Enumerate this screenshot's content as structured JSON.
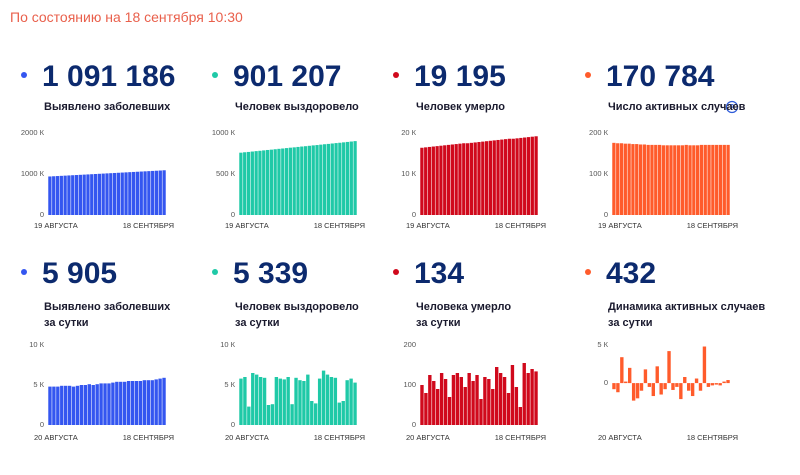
{
  "timestamp": "По состоянию на 18 сентября 10:30",
  "chart_data": [
    {
      "type": "bar",
      "headline": "1 091 186",
      "label_lines": [
        "Выявлено заболевших"
      ],
      "color": "#3456f0",
      "categories": [
        "19 АВГУСТА",
        null,
        null,
        null,
        null,
        null,
        null,
        null,
        null,
        null,
        null,
        null,
        null,
        null,
        null,
        null,
        null,
        null,
        null,
        null,
        null,
        null,
        null,
        null,
        null,
        null,
        null,
        null,
        null,
        null,
        "18 СЕНТЯБРЯ"
      ],
      "values": [
        940,
        945,
        950,
        955,
        960,
        965,
        970,
        975,
        980,
        985,
        990,
        995,
        1000,
        1005,
        1010,
        1015,
        1020,
        1025,
        1030,
        1035,
        1040,
        1045,
        1050,
        1055,
        1060,
        1065,
        1070,
        1075,
        1080,
        1085,
        1091
      ],
      "ylim": [
        0,
        2000
      ],
      "yticks": [
        0,
        {
          "value": 1000,
          "label": "1000 К"
        },
        {
          "value": 2000,
          "label": "2000 К"
        }
      ]
    },
    {
      "type": "bar",
      "headline": "901 207",
      "label_lines": [
        "Человек выздоровело"
      ],
      "color": "#1fc9a7",
      "categories": [
        "19 АВГУСТА",
        null,
        null,
        null,
        null,
        null,
        null,
        null,
        null,
        null,
        null,
        null,
        null,
        null,
        null,
        null,
        null,
        null,
        null,
        null,
        null,
        null,
        null,
        null,
        null,
        null,
        null,
        null,
        null,
        null,
        "18 СЕНТЯБРЯ"
      ],
      "values": [
        760,
        765,
        769,
        774,
        779,
        783,
        788,
        793,
        797,
        802,
        807,
        811,
        816,
        821,
        825,
        830,
        835,
        839,
        844,
        849,
        853,
        858,
        863,
        867,
        872,
        877,
        881,
        886,
        891,
        896,
        901
      ],
      "ylim": [
        0,
        1000
      ],
      "yticks": [
        0,
        {
          "value": 500,
          "label": "500 К"
        },
        {
          "value": 1000,
          "label": "1000 К"
        }
      ]
    },
    {
      "type": "bar",
      "headline": "19 195",
      "label_lines": [
        "Человек умерло"
      ],
      "color": "#d0091c",
      "categories": [
        "19 АВГУСТА",
        null,
        null,
        null,
        null,
        null,
        null,
        null,
        null,
        null,
        null,
        null,
        null,
        null,
        null,
        null,
        null,
        null,
        null,
        null,
        null,
        null,
        null,
        null,
        null,
        null,
        null,
        null,
        null,
        null,
        "18 СЕНТЯБРЯ"
      ],
      "values": [
        16.4,
        16.5,
        16.6,
        16.7,
        16.8,
        16.9,
        17.0,
        17.1,
        17.2,
        17.3,
        17.4,
        17.5,
        17.5,
        17.6,
        17.7,
        17.8,
        17.9,
        18.0,
        18.1,
        18.2,
        18.3,
        18.4,
        18.5,
        18.6,
        18.6,
        18.7,
        18.8,
        18.9,
        19.0,
        19.1,
        19.2
      ],
      "ylim": [
        0,
        20
      ],
      "yticks": [
        0,
        {
          "value": 10,
          "label": "10 К"
        },
        {
          "value": 20,
          "label": "20 К"
        }
      ]
    },
    {
      "type": "bar",
      "headline": "170 784",
      "label_lines": [
        "Число активных случаев"
      ],
      "color": "#ff5b2b",
      "categories": [
        "19 АВГУСТА",
        null,
        null,
        null,
        null,
        null,
        null,
        null,
        null,
        null,
        null,
        null,
        null,
        null,
        null,
        null,
        null,
        null,
        null,
        null,
        null,
        null,
        null,
        null,
        null,
        null,
        null,
        null,
        null,
        null,
        "18 СЕНТЯБРЯ"
      ],
      "values": [
        176,
        175,
        175,
        174,
        174,
        173,
        173,
        172,
        172,
        171,
        171,
        171,
        171,
        170,
        170,
        170,
        170,
        170,
        170,
        171,
        170,
        170,
        170,
        171,
        171,
        171,
        171,
        171,
        171,
        171,
        171
      ],
      "ylim": [
        0,
        200
      ],
      "yticks": [
        0,
        {
          "value": 100,
          "label": "100 К"
        },
        {
          "value": 200,
          "label": "200 К"
        }
      ]
    },
    {
      "type": "bar",
      "headline": "5 905",
      "label_lines": [
        "Выявлено заболевших",
        "за сутки"
      ],
      "color": "#3456f0",
      "categories": [
        "20 АВГУСТА",
        null,
        null,
        null,
        null,
        null,
        null,
        null,
        null,
        null,
        null,
        null,
        null,
        null,
        null,
        null,
        null,
        null,
        null,
        null,
        null,
        null,
        null,
        null,
        null,
        null,
        null,
        null,
        null,
        "18 СЕНТЯБРЯ"
      ],
      "values": [
        4.8,
        4.8,
        4.8,
        4.9,
        4.9,
        4.9,
        4.8,
        4.9,
        5.0,
        5.0,
        5.1,
        5.0,
        5.1,
        5.2,
        5.2,
        5.2,
        5.3,
        5.4,
        5.4,
        5.4,
        5.5,
        5.5,
        5.5,
        5.5,
        5.6,
        5.6,
        5.6,
        5.7,
        5.8,
        5.9
      ],
      "ylim": [
        0,
        10
      ],
      "yticks": [
        0,
        {
          "value": 5,
          "label": "5 К"
        },
        {
          "value": 10,
          "label": "10 К"
        }
      ]
    },
    {
      "type": "bar",
      "headline": "5 339",
      "label_lines": [
        "Человек выздоровело",
        "за сутки"
      ],
      "color": "#1fc9a7",
      "categories": [
        "20 АВГУСТА",
        null,
        null,
        null,
        null,
        null,
        null,
        null,
        null,
        null,
        null,
        null,
        null,
        null,
        null,
        null,
        null,
        null,
        null,
        null,
        null,
        null,
        null,
        null,
        null,
        null,
        null,
        null,
        null,
        "18 СЕНТЯБРЯ"
      ],
      "values": [
        5.8,
        6.0,
        2.3,
        6.5,
        6.3,
        6.0,
        5.9,
        2.5,
        2.6,
        6.0,
        5.8,
        5.7,
        6.0,
        2.6,
        5.9,
        5.6,
        5.5,
        6.3,
        3.0,
        2.7,
        5.8,
        6.8,
        6.3,
        6.0,
        5.9,
        2.8,
        3.0,
        5.6,
        5.8,
        5.3
      ],
      "ylim": [
        0,
        10
      ],
      "yticks": [
        0,
        {
          "value": 5,
          "label": "5 К"
        },
        {
          "value": 10,
          "label": "10 К"
        }
      ]
    },
    {
      "type": "bar",
      "headline": "134",
      "label_lines": [
        "Человека умерло",
        "за сутки"
      ],
      "color": "#d0091c",
      "categories": [
        "20 АВГУСТА",
        null,
        null,
        null,
        null,
        null,
        null,
        null,
        null,
        null,
        null,
        null,
        null,
        null,
        null,
        null,
        null,
        null,
        null,
        null,
        null,
        null,
        null,
        null,
        null,
        null,
        null,
        null,
        null,
        "18 СЕНТЯБРЯ"
      ],
      "values": [
        100,
        80,
        125,
        110,
        90,
        130,
        115,
        70,
        125,
        130,
        120,
        95,
        130,
        110,
        125,
        65,
        120,
        115,
        90,
        145,
        130,
        120,
        80,
        150,
        95,
        45,
        155,
        130,
        140,
        134
      ],
      "ylim": [
        0,
        200
      ],
      "yticks": [
        0,
        100,
        200
      ]
    },
    {
      "type": "bar",
      "headline": "432",
      "label_lines": [
        "Динамика активных случаев",
        "за сутки"
      ],
      "color": "#ff5b2b",
      "categories": [
        "20 АВГУСТА",
        null,
        null,
        null,
        null,
        null,
        null,
        null,
        null,
        null,
        null,
        null,
        null,
        null,
        null,
        null,
        null,
        null,
        null,
        null,
        null,
        null,
        null,
        null,
        null,
        null,
        null,
        null,
        null,
        "18 СЕНТЯБРЯ"
      ],
      "values": [
        -0.8,
        -1.2,
        3.4,
        0.2,
        2.0,
        -2.3,
        -2.0,
        -1.0,
        1.8,
        -0.5,
        -1.7,
        2.2,
        -1.5,
        -0.8,
        4.2,
        -0.9,
        -0.5,
        -2.1,
        0.8,
        -1.0,
        -1.7,
        0.6,
        -1.0,
        4.8,
        -0.5,
        -0.3,
        -0.2,
        -0.3,
        0.2,
        0.4
      ],
      "ylim": [
        -5.5,
        5
      ],
      "yticks": [
        0,
        {
          "value": 5,
          "label": "5 К"
        }
      ]
    }
  ]
}
